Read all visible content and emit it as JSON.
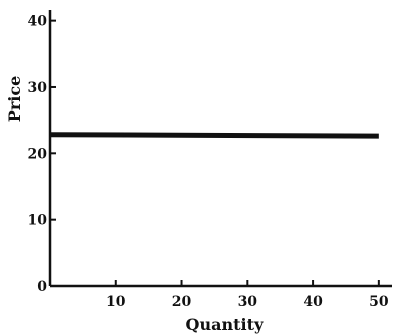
{
  "chart_data": {
    "type": "line",
    "title": "",
    "xlabel": "Quantity",
    "ylabel": "Price",
    "xlim": [
      0,
      52
    ],
    "ylim": [
      0,
      41
    ],
    "xticks": [
      10,
      20,
      30,
      40,
      50
    ],
    "yticks": [
      10,
      20,
      30,
      40
    ],
    "yzero_label": "0",
    "grid": false,
    "legend": "none",
    "series": [
      {
        "x": [
          0,
          50
        ],
        "y": [
          22.8,
          22.6
        ]
      }
    ],
    "colors": {
      "axis": "#111111",
      "line": "#111111"
    }
  }
}
